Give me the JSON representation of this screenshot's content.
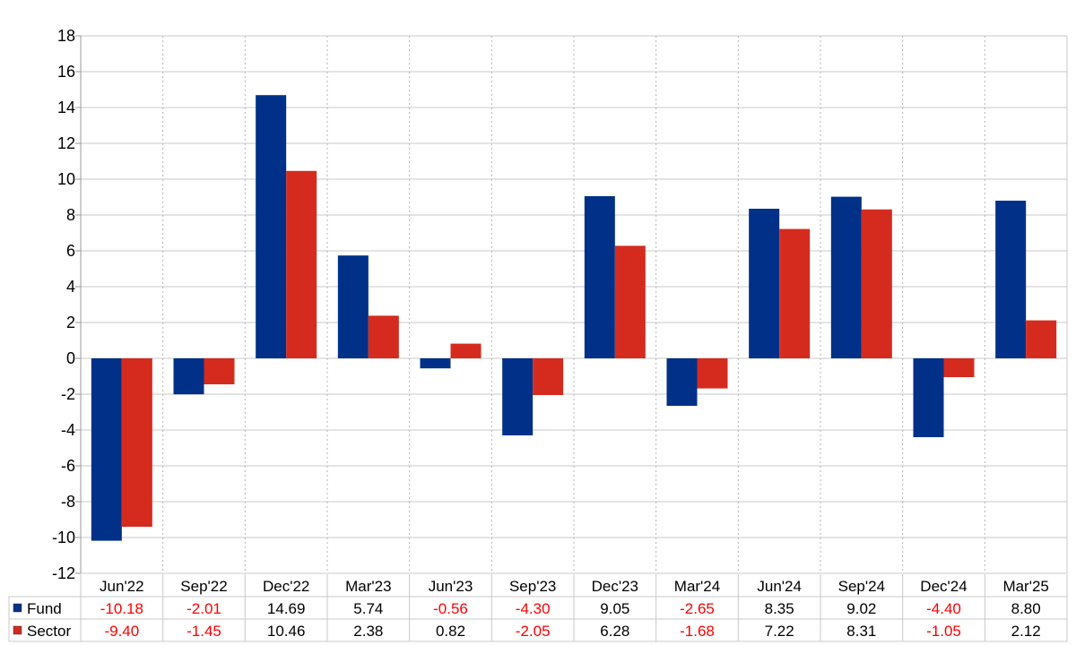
{
  "chart_data": {
    "type": "bar",
    "categories": [
      "Jun'22",
      "Sep'22",
      "Dec'22",
      "Mar'23",
      "Jun'23",
      "Sep'23",
      "Dec'23",
      "Mar'24",
      "Jun'24",
      "Sep'24",
      "Dec'24",
      "Mar'25"
    ],
    "series": [
      {
        "name": "Fund",
        "color": "#003087",
        "values": [
          -10.18,
          -2.01,
          14.69,
          5.74,
          -0.56,
          -4.3,
          9.05,
          -2.65,
          8.35,
          9.02,
          -4.4,
          8.8
        ],
        "labels": [
          "-10.18",
          "-2.01",
          "14.69",
          "5.74",
          "-0.56",
          "-4.30",
          "9.05",
          "-2.65",
          "8.35",
          "9.02",
          "-4.40",
          "8.80"
        ]
      },
      {
        "name": "Sector",
        "color": "#d52b1e",
        "values": [
          -9.4,
          -1.45,
          10.46,
          2.38,
          0.82,
          -2.05,
          6.28,
          -1.68,
          7.22,
          8.31,
          -1.05,
          2.12
        ],
        "labels": [
          "-9.40",
          "-1.45",
          "10.46",
          "2.38",
          "0.82",
          "-2.05",
          "6.28",
          "-1.68",
          "7.22",
          "8.31",
          "-1.05",
          "2.12"
        ]
      }
    ],
    "ylim": [
      -12,
      18
    ],
    "yticks": [
      "18",
      "16",
      "14",
      "12",
      "10",
      "8",
      "6",
      "4",
      "2",
      "0",
      "-2",
      "-4",
      "-6",
      "-8",
      "-10",
      "-12"
    ],
    "grid": true,
    "negative_color": "#ff0000",
    "positive_color": "#000000",
    "legend": "table"
  }
}
